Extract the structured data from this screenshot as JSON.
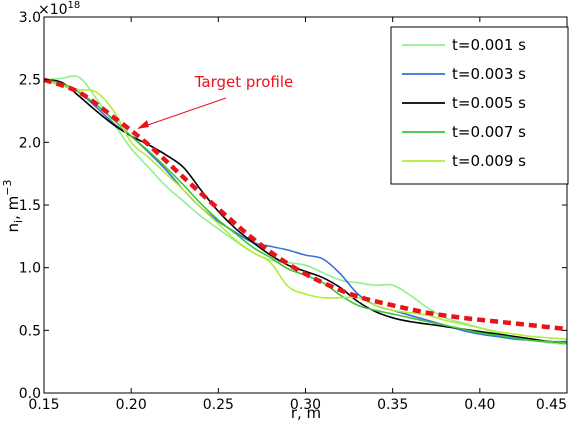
{
  "chart_data": {
    "type": "line",
    "xlabel": "r, m",
    "ylabel": "n",
    "ylabel_sub": "i",
    "ylabel_unit": ",  m",
    "ylabel_unit_sup": "−3",
    "y_multiplier_base": "×10",
    "y_multiplier_exp": "18",
    "xlim": [
      0.15,
      0.45
    ],
    "ylim": [
      0.0,
      3.0
    ],
    "xticks": [
      "0.15",
      "0.20",
      "0.25",
      "0.30",
      "0.35",
      "0.40",
      "0.45"
    ],
    "yticks": [
      "0.0",
      "0.5",
      "1.0",
      "1.5",
      "2.0",
      "2.5",
      "3.0"
    ],
    "xtick_values": [
      0.15,
      0.2,
      0.25,
      0.3,
      0.35,
      0.4,
      0.45
    ],
    "ytick_values": [
      0.0,
      0.5,
      1.0,
      1.5,
      2.0,
      2.5,
      3.0
    ],
    "grid": false,
    "legend_position": "top-right",
    "annotation": {
      "text": "Target profile",
      "x": 0.2,
      "y": 2.11
    },
    "target": {
      "color": "#e8141b",
      "x": [
        0.15,
        0.17,
        0.19,
        0.21,
        0.23,
        0.25,
        0.27,
        0.29,
        0.31,
        0.33,
        0.35,
        0.37,
        0.39,
        0.41,
        0.43,
        0.45
      ],
      "y": [
        2.5,
        2.4,
        2.2,
        1.98,
        1.72,
        1.47,
        1.23,
        1.03,
        0.88,
        0.77,
        0.7,
        0.64,
        0.6,
        0.57,
        0.54,
        0.51
      ]
    },
    "series": [
      {
        "name": "t=0.001 s",
        "color": "#8ff08f",
        "x": [
          0.15,
          0.16,
          0.17,
          0.18,
          0.19,
          0.2,
          0.21,
          0.22,
          0.23,
          0.24,
          0.25,
          0.26,
          0.27,
          0.28,
          0.29,
          0.3,
          0.31,
          0.32,
          0.33,
          0.34,
          0.35,
          0.36,
          0.37,
          0.38,
          0.39,
          0.4,
          0.41,
          0.42,
          0.43,
          0.44,
          0.45
        ],
        "y": [
          2.5,
          2.51,
          2.52,
          2.35,
          2.15,
          1.95,
          1.8,
          1.65,
          1.53,
          1.41,
          1.31,
          1.21,
          1.12,
          1.06,
          1.04,
          1.02,
          0.96,
          0.9,
          0.88,
          0.86,
          0.86,
          0.78,
          0.68,
          0.6,
          0.56,
          0.52,
          0.48,
          0.45,
          0.42,
          0.4,
          0.39
        ]
      },
      {
        "name": "t=0.003 s",
        "color": "#3a6fdc",
        "x": [
          0.15,
          0.16,
          0.17,
          0.18,
          0.19,
          0.2,
          0.21,
          0.22,
          0.23,
          0.24,
          0.25,
          0.26,
          0.27,
          0.28,
          0.29,
          0.3,
          0.31,
          0.32,
          0.33,
          0.34,
          0.35,
          0.36,
          0.37,
          0.38,
          0.39,
          0.4,
          0.41,
          0.42,
          0.43,
          0.44,
          0.45
        ],
        "y": [
          2.5,
          2.47,
          2.4,
          2.28,
          2.15,
          2.05,
          1.92,
          1.78,
          1.62,
          1.48,
          1.37,
          1.28,
          1.2,
          1.17,
          1.14,
          1.1,
          1.07,
          0.95,
          0.79,
          0.7,
          0.66,
          0.62,
          0.58,
          0.54,
          0.5,
          0.47,
          0.45,
          0.43,
          0.42,
          0.41,
          0.41
        ]
      },
      {
        "name": "t=0.005 s",
        "color": "#000000",
        "x": [
          0.15,
          0.16,
          0.17,
          0.18,
          0.19,
          0.2,
          0.21,
          0.22,
          0.23,
          0.24,
          0.25,
          0.26,
          0.27,
          0.28,
          0.29,
          0.3,
          0.31,
          0.32,
          0.33,
          0.34,
          0.35,
          0.36,
          0.37,
          0.38,
          0.39,
          0.4,
          0.41,
          0.42,
          0.43,
          0.44,
          0.45
        ],
        "y": [
          2.5,
          2.48,
          2.37,
          2.25,
          2.14,
          2.05,
          1.98,
          1.9,
          1.8,
          1.62,
          1.45,
          1.31,
          1.2,
          1.1,
          1.02,
          0.97,
          0.92,
          0.84,
          0.73,
          0.65,
          0.6,
          0.57,
          0.55,
          0.53,
          0.51,
          0.49,
          0.47,
          0.45,
          0.43,
          0.41,
          0.4
        ]
      },
      {
        "name": "t=0.007 s",
        "color": "#3cc43c",
        "x": [
          0.15,
          0.16,
          0.17,
          0.18,
          0.19,
          0.2,
          0.21,
          0.22,
          0.23,
          0.24,
          0.25,
          0.26,
          0.27,
          0.28,
          0.29,
          0.3,
          0.31,
          0.32,
          0.33,
          0.34,
          0.35,
          0.36,
          0.37,
          0.38,
          0.39,
          0.4,
          0.41,
          0.42,
          0.43,
          0.44,
          0.45
        ],
        "y": [
          2.5,
          2.47,
          2.4,
          2.3,
          2.18,
          2.05,
          1.93,
          1.8,
          1.66,
          1.51,
          1.38,
          1.27,
          1.16,
          1.08,
          0.99,
          0.94,
          0.88,
          0.78,
          0.7,
          0.66,
          0.63,
          0.6,
          0.57,
          0.54,
          0.51,
          0.48,
          0.46,
          0.44,
          0.42,
          0.41,
          0.4
        ]
      },
      {
        "name": "t=0.009 s",
        "color": "#b6ea3c",
        "x": [
          0.15,
          0.16,
          0.17,
          0.18,
          0.19,
          0.2,
          0.21,
          0.22,
          0.23,
          0.24,
          0.25,
          0.26,
          0.27,
          0.28,
          0.29,
          0.3,
          0.31,
          0.32,
          0.33,
          0.34,
          0.35,
          0.36,
          0.37,
          0.38,
          0.39,
          0.4,
          0.41,
          0.42,
          0.43,
          0.44,
          0.45
        ],
        "y": [
          2.5,
          2.45,
          2.42,
          2.4,
          2.25,
          2.0,
          1.88,
          1.75,
          1.62,
          1.48,
          1.35,
          1.22,
          1.12,
          1.04,
          0.85,
          0.79,
          0.76,
          0.76,
          0.76,
          0.7,
          0.66,
          0.64,
          0.62,
          0.58,
          0.55,
          0.52,
          0.49,
          0.47,
          0.45,
          0.44,
          0.43
        ]
      }
    ]
  }
}
